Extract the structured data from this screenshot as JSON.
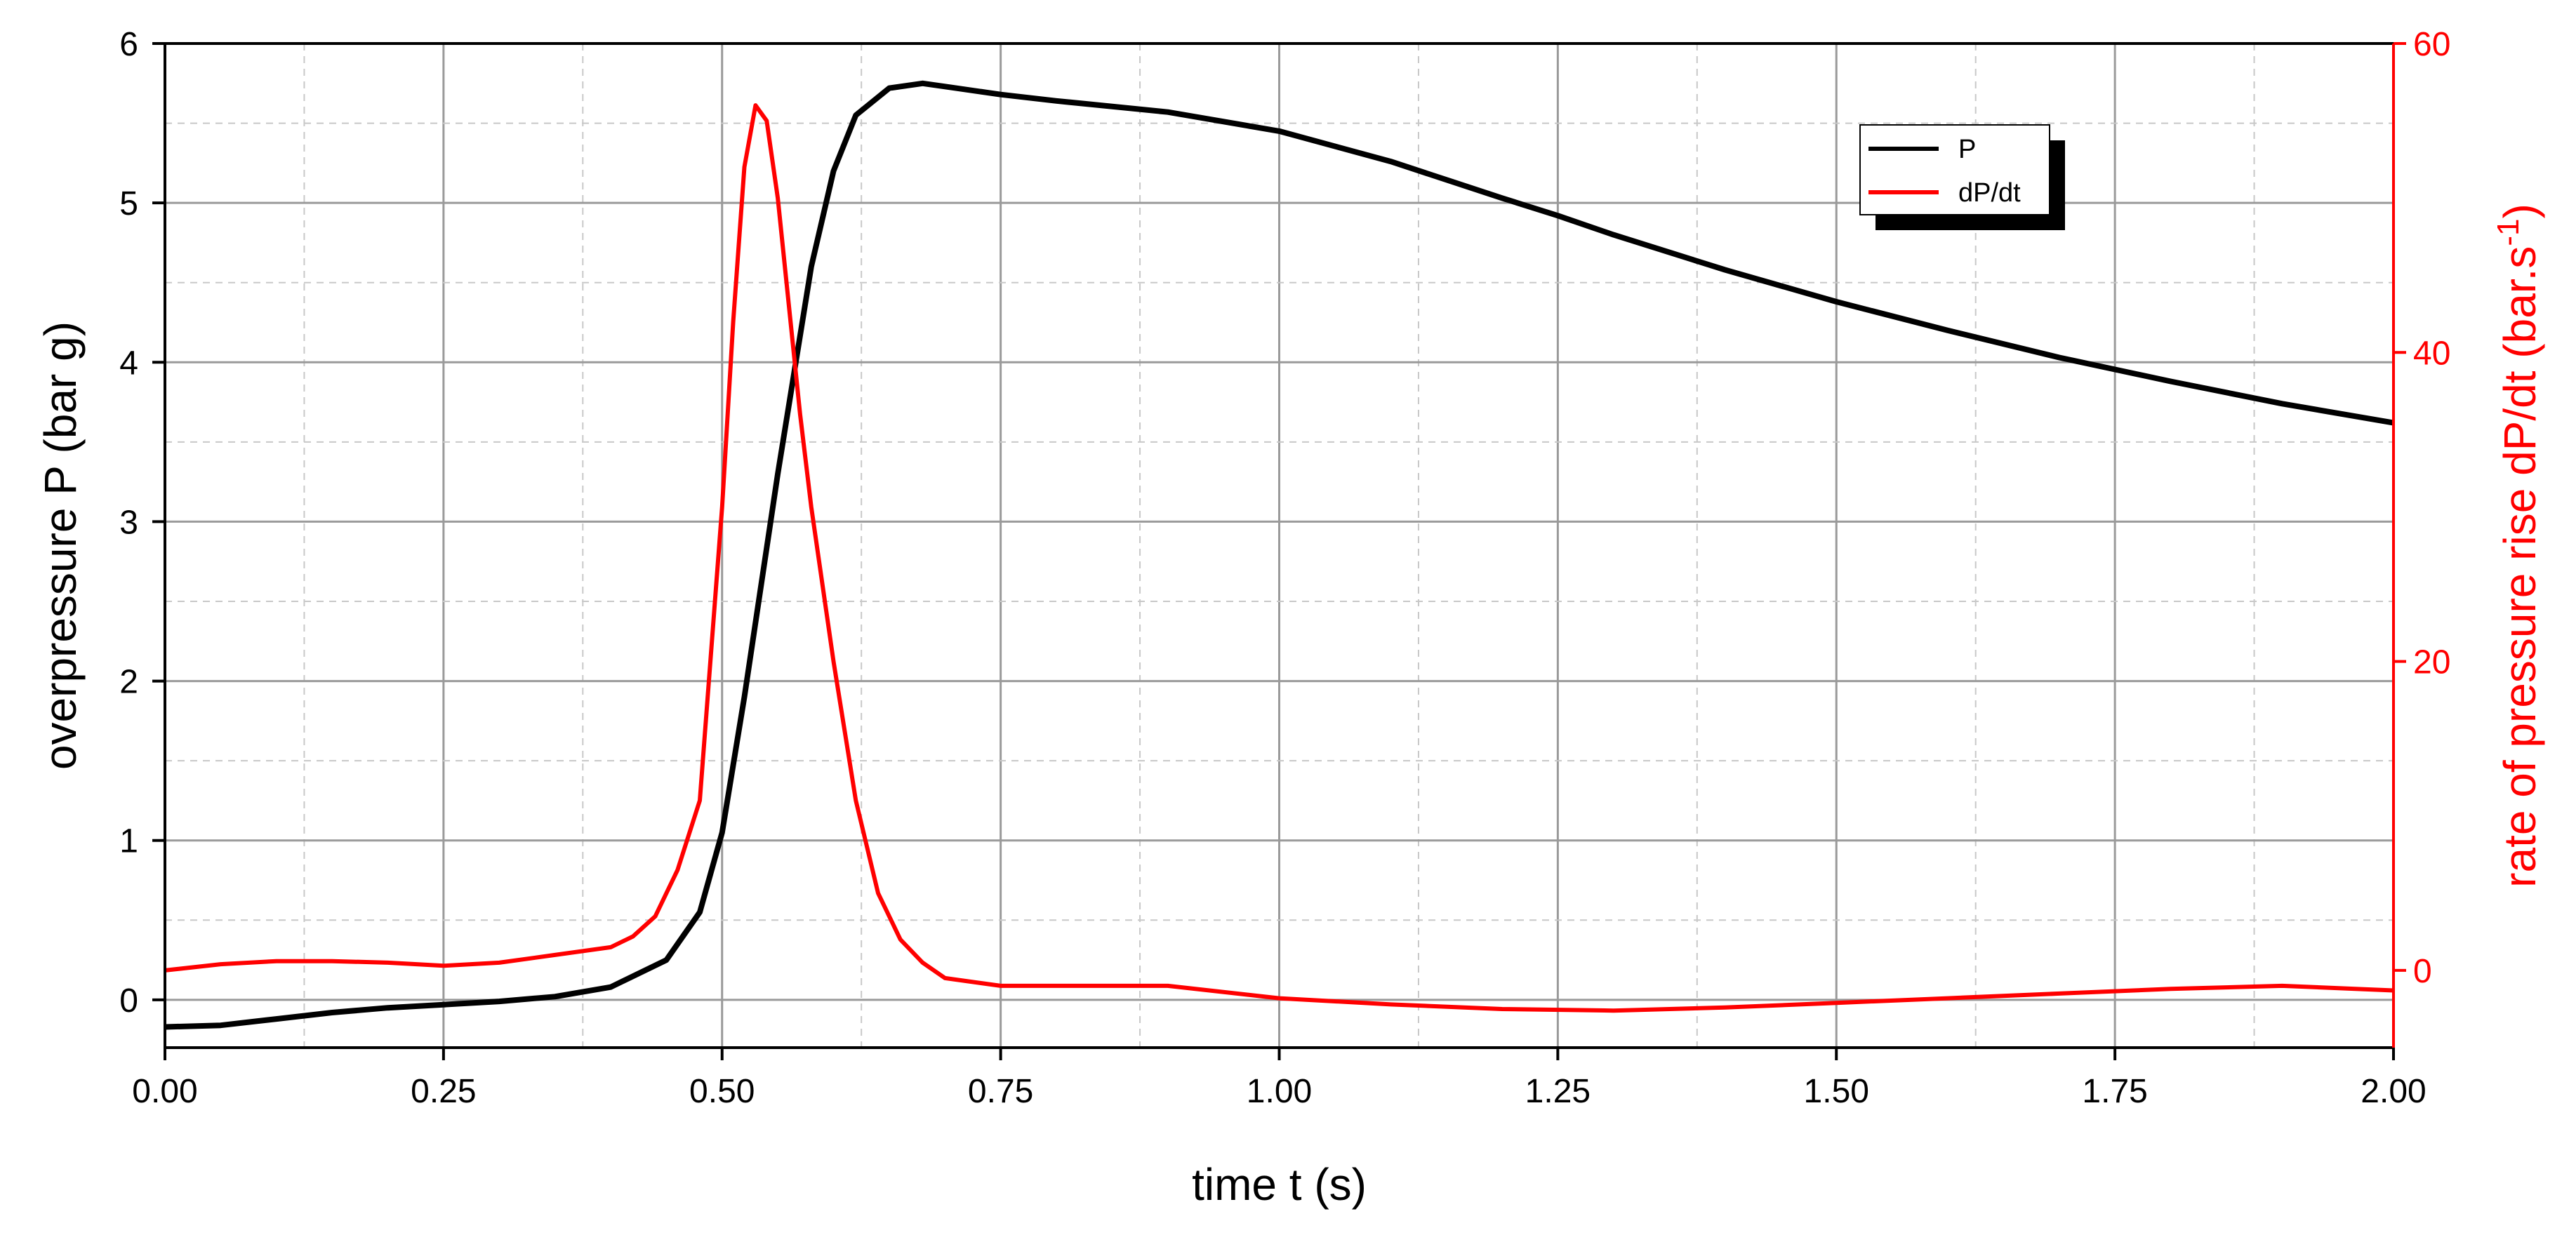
{
  "chart_data": {
    "type": "line",
    "xlabel": "time t (s)",
    "ylabel_left": "overpressure P (bar g)",
    "ylabel_right_parts": [
      "rate of pressure rise dP/dt (bar.s",
      "-1",
      ")"
    ],
    "xlim": [
      0,
      2
    ],
    "ylim_left": [
      -0.3,
      6
    ],
    "ylim_right": [
      -5,
      60
    ],
    "x_ticks": [
      "0.00",
      "0.25",
      "0.50",
      "0.75",
      "1.00",
      "1.25",
      "1.50",
      "1.75",
      "2.00"
    ],
    "y_left_ticks": [
      "0",
      "1",
      "2",
      "3",
      "4",
      "5",
      "6"
    ],
    "y_right_ticks": [
      "0",
      "20",
      "40",
      "60"
    ],
    "grid": true,
    "legend_position": "top-right",
    "series": [
      {
        "name": "P",
        "axis": "left",
        "color": "#000000",
        "x": [
          0.0,
          0.05,
          0.1,
          0.15,
          0.2,
          0.25,
          0.3,
          0.35,
          0.4,
          0.45,
          0.48,
          0.5,
          0.52,
          0.55,
          0.58,
          0.6,
          0.62,
          0.65,
          0.68,
          0.7,
          0.75,
          0.8,
          0.9,
          1.0,
          1.1,
          1.2,
          1.25,
          1.3,
          1.4,
          1.5,
          1.6,
          1.7,
          1.8,
          1.9,
          2.0
        ],
        "y": [
          -0.17,
          -0.16,
          -0.12,
          -0.08,
          -0.05,
          -0.03,
          -0.01,
          0.02,
          0.08,
          0.25,
          0.55,
          1.05,
          1.9,
          3.3,
          4.6,
          5.2,
          5.55,
          5.72,
          5.75,
          5.73,
          5.68,
          5.64,
          5.57,
          5.45,
          5.26,
          5.03,
          4.92,
          4.8,
          4.58,
          4.38,
          4.2,
          4.03,
          3.88,
          3.74,
          3.62
        ]
      },
      {
        "name": "dP/dt",
        "axis": "right",
        "color": "#ff0000",
        "x": [
          0.0,
          0.05,
          0.1,
          0.15,
          0.2,
          0.25,
          0.3,
          0.35,
          0.4,
          0.42,
          0.44,
          0.46,
          0.48,
          0.5,
          0.51,
          0.52,
          0.53,
          0.54,
          0.55,
          0.56,
          0.57,
          0.58,
          0.6,
          0.62,
          0.64,
          0.66,
          0.68,
          0.7,
          0.75,
          0.8,
          0.9,
          1.0,
          1.1,
          1.2,
          1.3,
          1.4,
          1.5,
          1.6,
          1.7,
          1.8,
          1.9,
          2.0
        ],
        "y": [
          0.0,
          0.4,
          0.6,
          0.6,
          0.5,
          0.3,
          0.5,
          1.0,
          1.5,
          2.2,
          3.5,
          6.5,
          11.0,
          30.0,
          42.0,
          52.0,
          56.0,
          55.0,
          50.0,
          43.0,
          36.0,
          30.0,
          20.0,
          11.0,
          5.0,
          2.0,
          0.5,
          -0.5,
          -1.0,
          -1.0,
          -1.0,
          -1.8,
          -2.2,
          -2.5,
          -2.6,
          -2.4,
          -2.1,
          -1.8,
          -1.5,
          -1.2,
          -1.0,
          -1.3
        ]
      }
    ]
  }
}
